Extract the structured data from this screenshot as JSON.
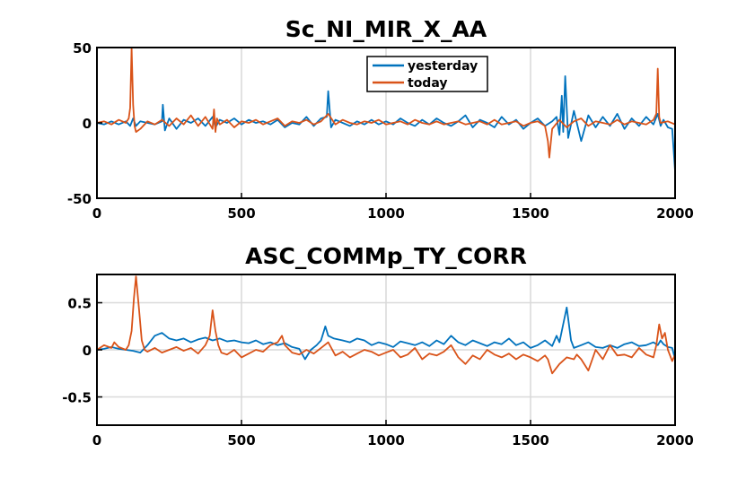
{
  "chart_data": [
    {
      "type": "line",
      "title": "Sc_NI_MIR_X_AA",
      "xlim": [
        0,
        2000
      ],
      "ylim": [
        -50,
        50
      ],
      "xticks": [
        0,
        500,
        1000,
        1500,
        2000
      ],
      "yticks": [
        -50,
        0,
        50
      ],
      "xtick_labels": [
        "0",
        "500",
        "1000",
        "1500",
        "2000"
      ],
      "ytick_labels": [
        "-50",
        "0",
        "50"
      ],
      "grid": "vertical",
      "legend": "top-center",
      "series": [
        {
          "name": "yesterday",
          "color": "#0072BD",
          "x": [
            0,
            25,
            50,
            75,
            100,
            115,
            125,
            135,
            150,
            175,
            200,
            225,
            228,
            235,
            250,
            275,
            300,
            325,
            350,
            375,
            400,
            410,
            425,
            450,
            475,
            500,
            525,
            550,
            575,
            600,
            625,
            650,
            675,
            700,
            725,
            750,
            775,
            795,
            800,
            810,
            825,
            850,
            875,
            900,
            925,
            950,
            975,
            1000,
            1025,
            1050,
            1075,
            1100,
            1125,
            1150,
            1175,
            1200,
            1225,
            1250,
            1275,
            1300,
            1325,
            1350,
            1375,
            1400,
            1425,
            1450,
            1475,
            1500,
            1525,
            1550,
            1575,
            1590,
            1600,
            1608,
            1613,
            1620,
            1630,
            1650,
            1675,
            1700,
            1725,
            1750,
            1775,
            1800,
            1825,
            1850,
            1875,
            1900,
            1925,
            1940,
            1950,
            1960,
            1975,
            1990,
            2000
          ],
          "y": [
            0,
            -1,
            1,
            -1,
            1,
            -2,
            3,
            -2,
            1,
            0,
            -1,
            1,
            12,
            -5,
            3,
            -4,
            2,
            0,
            3,
            -2,
            4,
            -3,
            2,
            0,
            3,
            -1,
            2,
            0,
            1,
            -1,
            2,
            -3,
            0,
            -1,
            4,
            -2,
            3,
            4,
            21,
            -3,
            2,
            0,
            -2,
            1,
            -1,
            2,
            -1,
            1,
            -1,
            3,
            0,
            -2,
            2,
            -1,
            3,
            0,
            -2,
            1,
            5,
            -3,
            2,
            0,
            -3,
            4,
            -1,
            2,
            -4,
            0,
            3,
            -2,
            1,
            4,
            -8,
            18,
            -6,
            31,
            -10,
            8,
            -12,
            5,
            -3,
            4,
            -2,
            6,
            -4,
            3,
            -2,
            4,
            -1,
            6,
            -2,
            2,
            -3,
            -4,
            -32
          ]
        },
        {
          "name": "today",
          "color": "#D95319",
          "x": [
            0,
            25,
            50,
            75,
            100,
            110,
            115,
            120,
            125,
            130,
            135,
            150,
            175,
            200,
            225,
            250,
            275,
            300,
            325,
            350,
            375,
            400,
            405,
            410,
            415,
            425,
            450,
            475,
            500,
            525,
            550,
            575,
            600,
            625,
            650,
            675,
            700,
            725,
            750,
            775,
            800,
            825,
            850,
            875,
            900,
            925,
            950,
            975,
            1000,
            1025,
            1050,
            1075,
            1100,
            1125,
            1150,
            1175,
            1200,
            1225,
            1250,
            1275,
            1300,
            1325,
            1350,
            1375,
            1400,
            1425,
            1450,
            1475,
            1500,
            1525,
            1550,
            1560,
            1565,
            1575,
            1600,
            1625,
            1650,
            1675,
            1700,
            1725,
            1750,
            1775,
            1800,
            1825,
            1850,
            1875,
            1900,
            1925,
            1935,
            1940,
            1945,
            1950,
            1975,
            2000
          ],
          "y": [
            0,
            1,
            -1,
            2,
            0,
            3,
            10,
            50,
            12,
            -2,
            -6,
            -4,
            1,
            -1,
            2,
            -2,
            3,
            -1,
            5,
            -2,
            4,
            -4,
            9,
            -6,
            3,
            -1,
            2,
            -3,
            1,
            0,
            2,
            -1,
            1,
            3,
            -2,
            1,
            0,
            2,
            -1,
            1,
            6,
            -1,
            2,
            0,
            -1,
            1,
            0,
            2,
            -1,
            0,
            1,
            -1,
            2,
            0,
            -1,
            1,
            -1,
            0,
            1,
            -1,
            0,
            1,
            -1,
            2,
            -1,
            0,
            1,
            -2,
            0,
            1,
            -2,
            -12,
            -23,
            -4,
            2,
            -3,
            1,
            3,
            -2,
            1,
            0,
            -1,
            2,
            -1,
            1,
            0,
            -1,
            2,
            6,
            36,
            4,
            0,
            1,
            -1
          ]
        }
      ]
    },
    {
      "type": "line",
      "title": "ASC_COMMp_TY_CORR",
      "xlim": [
        0,
        2000
      ],
      "ylim": [
        -0.8,
        0.8
      ],
      "xticks": [
        0,
        500,
        1000,
        1500,
        2000
      ],
      "yticks": [
        -0.5,
        0,
        0.5
      ],
      "xtick_labels": [
        "0",
        "500",
        "1000",
        "1500",
        "2000"
      ],
      "ytick_labels": [
        "-0.5",
        "0",
        "0.5"
      ],
      "grid": "both",
      "legend": "none",
      "series": [
        {
          "name": "yesterday",
          "color": "#0072BD",
          "x": [
            0,
            25,
            50,
            75,
            100,
            125,
            150,
            175,
            200,
            225,
            250,
            275,
            300,
            325,
            350,
            375,
            400,
            425,
            450,
            475,
            500,
            525,
            550,
            575,
            600,
            625,
            650,
            675,
            700,
            720,
            740,
            760,
            775,
            790,
            800,
            820,
            850,
            875,
            900,
            925,
            950,
            975,
            1000,
            1025,
            1050,
            1075,
            1100,
            1125,
            1150,
            1175,
            1200,
            1225,
            1250,
            1275,
            1300,
            1325,
            1350,
            1375,
            1400,
            1425,
            1450,
            1475,
            1500,
            1525,
            1550,
            1575,
            1590,
            1600,
            1615,
            1625,
            1640,
            1650,
            1675,
            1700,
            1725,
            1750,
            1775,
            1800,
            1825,
            1850,
            1875,
            1900,
            1925,
            1940,
            1950,
            1960,
            1975,
            1990,
            2000
          ],
          "y": [
            0,
            0.01,
            0.03,
            0.01,
            0,
            -0.01,
            -0.03,
            0.05,
            0.15,
            0.18,
            0.12,
            0.1,
            0.12,
            0.08,
            0.11,
            0.13,
            0.1,
            0.12,
            0.09,
            0.1,
            0.08,
            0.07,
            0.1,
            0.06,
            0.08,
            0.05,
            0.07,
            0.03,
            0.01,
            -0.1,
            0,
            0.05,
            0.1,
            0.25,
            0.15,
            0.12,
            0.1,
            0.08,
            0.12,
            0.1,
            0.05,
            0.08,
            0.06,
            0.03,
            0.09,
            0.07,
            0.05,
            0.08,
            0.04,
            0.1,
            0.06,
            0.15,
            0.08,
            0.05,
            0.1,
            0.07,
            0.04,
            0.08,
            0.06,
            0.12,
            0.05,
            0.08,
            0.02,
            0.05,
            0.1,
            0.04,
            0.15,
            0.08,
            0.3,
            0.45,
            0.1,
            0.02,
            0.05,
            0.08,
            0.03,
            0.02,
            0.05,
            0.02,
            0.06,
            0.08,
            0.04,
            0.05,
            0.08,
            0.05,
            0.1,
            0.06,
            0.03,
            0.02,
            -0.1
          ]
        },
        {
          "name": "today",
          "color": "#D95319",
          "x": [
            0,
            25,
            50,
            60,
            75,
            100,
            110,
            120,
            128,
            135,
            145,
            155,
            165,
            175,
            200,
            225,
            250,
            275,
            300,
            325,
            350,
            375,
            390,
            400,
            410,
            420,
            430,
            450,
            475,
            500,
            525,
            550,
            575,
            600,
            625,
            640,
            650,
            675,
            700,
            725,
            750,
            775,
            800,
            825,
            850,
            875,
            900,
            925,
            950,
            975,
            1000,
            1025,
            1050,
            1075,
            1100,
            1125,
            1150,
            1175,
            1200,
            1225,
            1250,
            1275,
            1300,
            1325,
            1350,
            1375,
            1400,
            1425,
            1450,
            1475,
            1500,
            1525,
            1550,
            1560,
            1575,
            1600,
            1625,
            1650,
            1660,
            1675,
            1700,
            1725,
            1750,
            1775,
            1800,
            1825,
            1850,
            1875,
            1900,
            1925,
            1935,
            1945,
            1955,
            1965,
            1975,
            1990,
            2000
          ],
          "y": [
            0,
            0.05,
            0.02,
            0.08,
            0.03,
            0,
            0.05,
            0.2,
            0.55,
            0.78,
            0.45,
            0.1,
            0,
            -0.02,
            0.02,
            -0.03,
            0,
            0.03,
            -0.01,
            0.02,
            -0.04,
            0.05,
            0.15,
            0.42,
            0.2,
            0.05,
            -0.03,
            -0.05,
            0,
            -0.08,
            -0.04,
            0,
            -0.02,
            0.05,
            0.08,
            0.15,
            0.05,
            -0.03,
            -0.05,
            0,
            -0.04,
            0.02,
            0.08,
            -0.06,
            -0.02,
            -0.08,
            -0.04,
            0,
            -0.02,
            -0.06,
            -0.03,
            0,
            -0.08,
            -0.05,
            0.02,
            -0.1,
            -0.04,
            -0.06,
            -0.02,
            0.05,
            -0.08,
            -0.15,
            -0.06,
            -0.1,
            0,
            -0.05,
            -0.08,
            -0.04,
            -0.1,
            -0.05,
            -0.08,
            -0.12,
            -0.06,
            -0.1,
            -0.25,
            -0.15,
            -0.08,
            -0.1,
            -0.05,
            -0.1,
            -0.22,
            0,
            -0.1,
            0.05,
            -0.06,
            -0.05,
            -0.08,
            0.02,
            -0.05,
            -0.08,
            0.05,
            0.27,
            0.12,
            0.18,
            0,
            -0.12,
            -0.05
          ]
        }
      ]
    }
  ]
}
